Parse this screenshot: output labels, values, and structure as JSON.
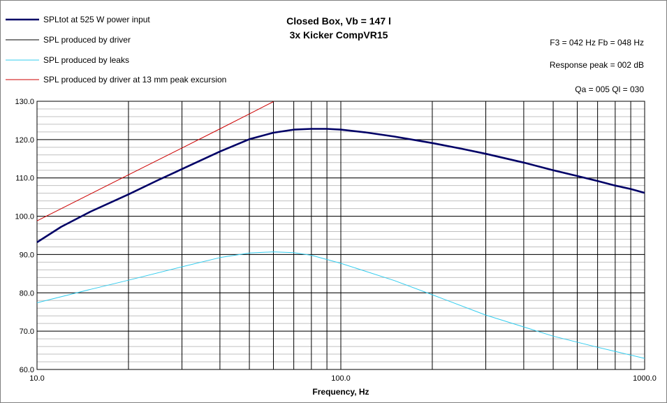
{
  "chart_data": {
    "type": "line",
    "title": "Closed Box, Vb = 147 l",
    "subtitle": "3x Kicker CompVR15",
    "xlabel": "Frequency, Hz",
    "ylabel": "",
    "xscale": "log",
    "xlim": [
      10,
      1000
    ],
    "ylim": [
      60,
      130
    ],
    "grid": true,
    "legend_position": "top-left",
    "x_tick_labels": [
      "10.0",
      "100.0",
      "1000.0"
    ],
    "y_tick_labels": [
      "60.0",
      "70.0",
      "80.0",
      "90.0",
      "100.0",
      "110.0",
      "120.0",
      "130.0"
    ],
    "info_lines": [
      "F3 = 042 Hz  Fb = 048 Hz",
      "Response peak = 002 dB",
      "Qa = 005  Ql = 030"
    ],
    "series": [
      {
        "name": "SPLtot at 525 W power input",
        "color": "#000066",
        "x": [
          10,
          12,
          15,
          20,
          25,
          30,
          40,
          50,
          60,
          70,
          80,
          90,
          100,
          120,
          150,
          200,
          250,
          300,
          400,
          500,
          600,
          700,
          800,
          900,
          1000
        ],
        "y": [
          93.2,
          97.2,
          101.2,
          105.7,
          109.4,
          112.3,
          116.9,
          120.1,
          121.8,
          122.6,
          122.8,
          122.8,
          122.6,
          121.9,
          120.8,
          119.1,
          117.6,
          116.3,
          114.0,
          112.0,
          110.5,
          109.2,
          108.0,
          107.1,
          106.1
        ]
      },
      {
        "name": "SPL produced by driver",
        "color": "#000000",
        "x": [
          10,
          12,
          15,
          20,
          25,
          30,
          40,
          50,
          60,
          70,
          80,
          90,
          100,
          120,
          150,
          200,
          250,
          300,
          400,
          500,
          600,
          700,
          800,
          900,
          1000
        ],
        "y": [
          93.2,
          97.2,
          101.2,
          105.7,
          109.4,
          112.3,
          116.9,
          120.1,
          121.8,
          122.6,
          122.8,
          122.8,
          122.6,
          121.9,
          120.8,
          119.1,
          117.6,
          116.3,
          114.0,
          112.0,
          110.5,
          109.2,
          108.0,
          107.1,
          106.1
        ]
      },
      {
        "name": "SPL produced by leaks",
        "color": "#33CCEE",
        "x": [
          10,
          15,
          20,
          30,
          40,
          50,
          60,
          70,
          80,
          100,
          150,
          200,
          300,
          500,
          700,
          1000
        ],
        "y": [
          77.4,
          80.9,
          83.3,
          86.8,
          89.2,
          90.4,
          90.7,
          90.5,
          89.8,
          87.7,
          83.2,
          79.5,
          74.2,
          68.7,
          65.8,
          62.9
        ]
      },
      {
        "name": "SPL produced by driver at 13 mm peak excursion",
        "color": "#CC0000",
        "x": [
          10,
          20,
          30,
          40,
          50,
          60
        ],
        "y": [
          98.8,
          110.8,
          117.8,
          122.8,
          126.7,
          129.9
        ]
      }
    ]
  }
}
